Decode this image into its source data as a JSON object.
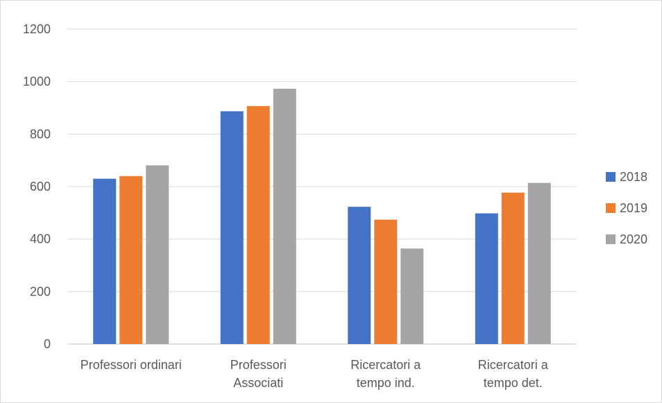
{
  "chart_data": {
    "type": "bar",
    "categories": [
      [
        "Professori ordinari"
      ],
      [
        "Professori",
        "Associati"
      ],
      [
        "Ricercatori a",
        "tempo ind."
      ],
      [
        "Ricercatori a",
        "tempo det."
      ]
    ],
    "series": [
      {
        "name": "2018",
        "color": "#4472c4",
        "values": [
          630,
          887,
          523,
          498
        ]
      },
      {
        "name": "2019",
        "color": "#ed7d31",
        "values": [
          640,
          907,
          474,
          577
        ]
      },
      {
        "name": "2020",
        "color": "#a5a5a5",
        "values": [
          681,
          973,
          364,
          614
        ]
      }
    ],
    "ylim": [
      0,
      1200
    ],
    "yticks": [
      "0",
      "200",
      "400",
      "600",
      "800",
      "1000",
      "1200"
    ],
    "grid": true,
    "legend_position": "right"
  }
}
